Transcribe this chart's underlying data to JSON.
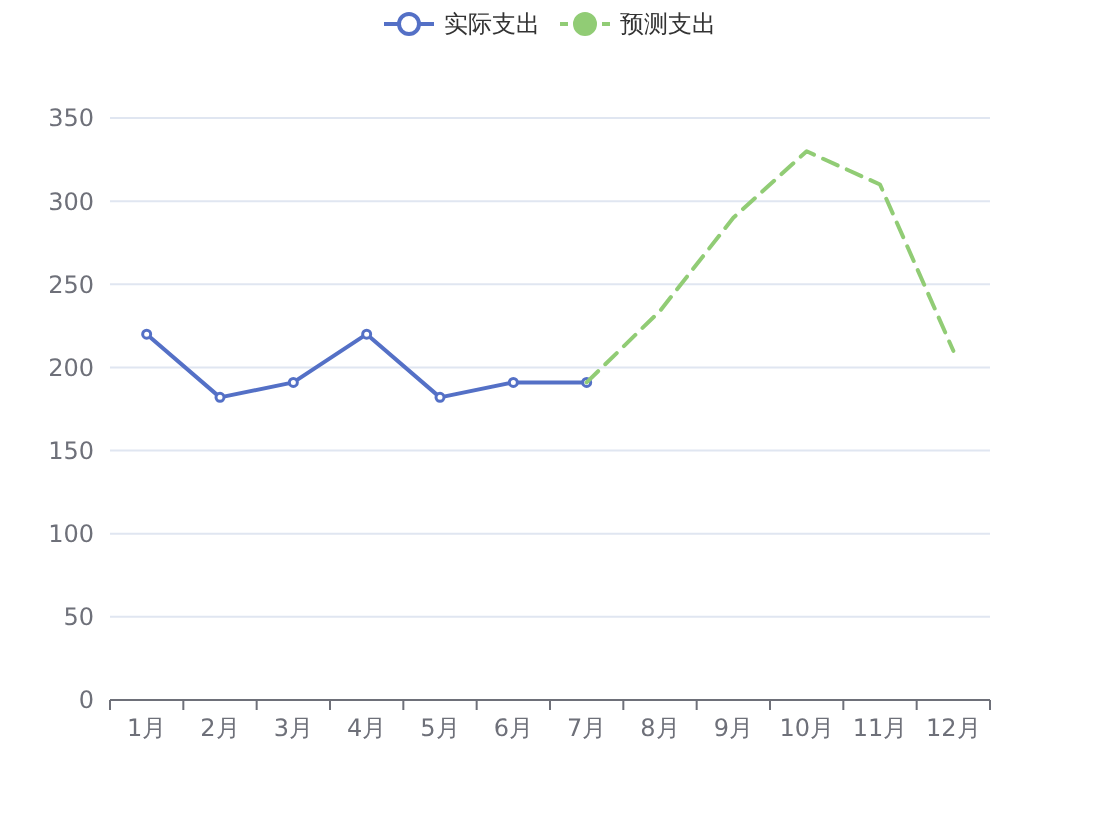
{
  "chart_data": {
    "type": "line",
    "categories": [
      "1月",
      "2月",
      "3月",
      "4月",
      "5月",
      "6月",
      "7月",
      "8月",
      "9月",
      "10月",
      "11月",
      "12月"
    ],
    "series": [
      {
        "name": "实际支出",
        "color": "#5470c6",
        "values": [
          220,
          182,
          191,
          220,
          182,
          191,
          191,
          null,
          null,
          null,
          null,
          null
        ],
        "marker": "circle",
        "line_style": "solid"
      },
      {
        "name": "预测支出",
        "color": "#91cc75",
        "values": [
          null,
          null,
          null,
          null,
          null,
          null,
          191,
          234,
          290,
          330,
          310,
          210
        ],
        "marker": "none",
        "line_style": "dashed"
      }
    ],
    "ylim": [
      0,
      350
    ],
    "yticks": [
      0,
      50,
      100,
      150,
      200,
      250,
      300,
      350
    ],
    "grid": "y",
    "legend": "top"
  }
}
